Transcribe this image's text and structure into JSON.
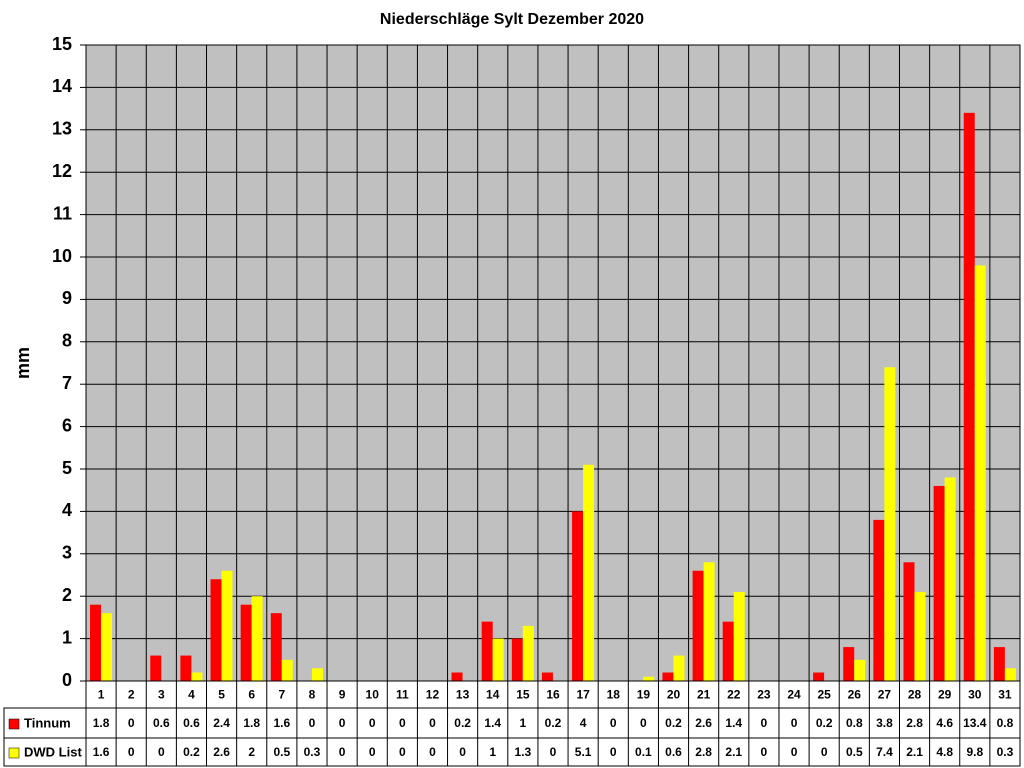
{
  "chart_data": {
    "type": "bar",
    "title": "Niederschläge Sylt Dezember 2020",
    "y_label": "mm",
    "categories": [
      "1",
      "2",
      "3",
      "4",
      "5",
      "6",
      "7",
      "8",
      "9",
      "10",
      "11",
      "12",
      "13",
      "14",
      "15",
      "16",
      "17",
      "18",
      "19",
      "20",
      "21",
      "22",
      "23",
      "24",
      "25",
      "26",
      "27",
      "28",
      "29",
      "30",
      "31"
    ],
    "series": [
      {
        "name": "Tinnum",
        "color": "#ff0000",
        "values": [
          1.8,
          0,
          0.6,
          0.6,
          2.4,
          1.8,
          1.6,
          0,
          0,
          0,
          0,
          0,
          0.2,
          1.4,
          1,
          0.2,
          4,
          0,
          0,
          0.2,
          2.6,
          1.4,
          0,
          0,
          0.2,
          0.8,
          3.8,
          2.8,
          4.6,
          13.4,
          0.8
        ]
      },
      {
        "name": "DWD List",
        "color": "#ffff00",
        "values": [
          1.6,
          0,
          0,
          0.2,
          2.6,
          2,
          0.5,
          0.3,
          0,
          0,
          0,
          0,
          0,
          1,
          1.3,
          0,
          5.1,
          0,
          0.1,
          0.6,
          2.8,
          2.1,
          0,
          0,
          0,
          0.5,
          7.4,
          2.1,
          4.8,
          9.8,
          0.3
        ]
      }
    ],
    "ylim": [
      0,
      15
    ],
    "yticks": [
      0,
      1,
      2,
      3,
      4,
      5,
      6,
      7,
      8,
      9,
      10,
      11,
      12,
      13,
      14,
      15
    ],
    "grid": true
  }
}
